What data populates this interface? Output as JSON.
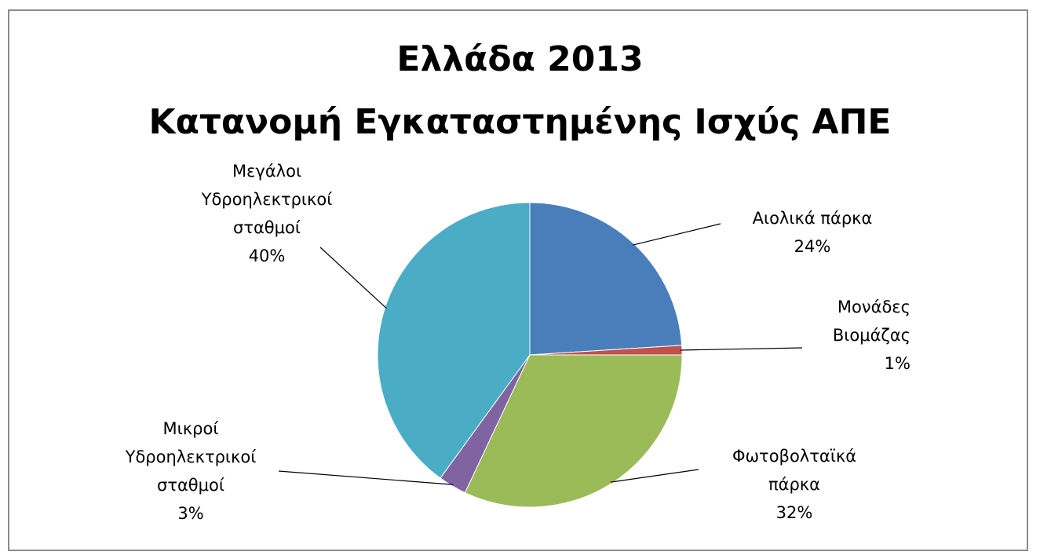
{
  "chart_data": {
    "type": "pie",
    "title": "Ελλάδα  2013",
    "subtitle": "Κατανομή Εγκαταστημένης Ισχύς ΑΠΕ",
    "slices": [
      {
        "label": [
          "Αιολικά πάρκα"
        ],
        "value": 24,
        "value_label": "24%",
        "color": "#4a7ebb"
      },
      {
        "label": [
          "Μονάδες",
          "Βιομάζας"
        ],
        "value": 1,
        "value_label": "1%",
        "color": "#c0504d"
      },
      {
        "label": [
          "Φωτοβολταϊκά",
          "πάρκα"
        ],
        "value": 32,
        "value_label": "32%",
        "color": "#9bbb59"
      },
      {
        "label": [
          "Μικροί",
          "Υδροηλεκτρικοί",
          "σταθμοί"
        ],
        "value": 3,
        "value_label": "3%",
        "color": "#8064a2"
      },
      {
        "label": [
          "Μεγάλοι",
          "Υδροηλεκτρικοί",
          "σταθμοί"
        ],
        "value": 40,
        "value_label": "40%",
        "color": "#4bacc6"
      }
    ],
    "start_angle_deg": 0,
    "direction": "clockwise",
    "legend": "none",
    "data_labels": "outside-with-leader-lines"
  }
}
